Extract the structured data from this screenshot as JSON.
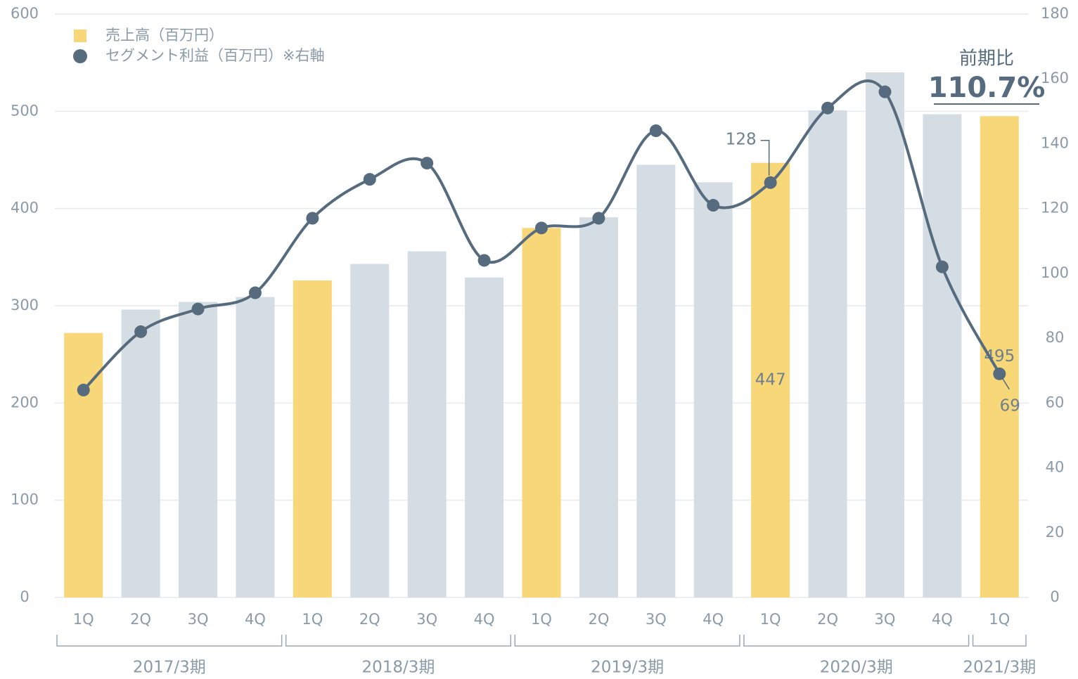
{
  "chart_data": {
    "type": "bar-line",
    "categories": [
      "1Q",
      "2Q",
      "3Q",
      "4Q",
      "1Q",
      "2Q",
      "3Q",
      "4Q",
      "1Q",
      "2Q",
      "3Q",
      "4Q",
      "1Q",
      "2Q",
      "3Q",
      "4Q",
      "1Q"
    ],
    "periods": [
      "2017/3期",
      "2017/3期",
      "2017/3期",
      "2017/3期",
      "2018/3期",
      "2018/3期",
      "2018/3期",
      "2018/3期",
      "2019/3期",
      "2019/3期",
      "2019/3期",
      "2019/3期",
      "2020/3期",
      "2020/3期",
      "2020/3期",
      "2020/3期",
      "2021/3期"
    ],
    "series": [
      {
        "name": "売上高（百万円）",
        "type": "bar",
        "color": "#f7d778",
        "colors": [
          "#f7d778",
          "#d5dde4",
          "#d5dde4",
          "#d5dde4",
          "#f7d778",
          "#d5dde4",
          "#d5dde4",
          "#d5dde4",
          "#f7d778",
          "#d5dde4",
          "#d5dde4",
          "#d5dde4",
          "#f7d778",
          "#d5dde4",
          "#d5dde4",
          "#d5dde4",
          "#f7d778"
        ],
        "values": [
          272,
          296,
          304,
          309,
          326,
          343,
          356,
          329,
          380,
          391,
          445,
          427,
          447,
          501,
          540,
          497,
          495
        ],
        "value_labels": [
          null,
          null,
          null,
          null,
          null,
          null,
          null,
          null,
          null,
          null,
          null,
          null,
          "447",
          null,
          null,
          null,
          "495"
        ]
      },
      {
        "name": "セグメント利益（百万円）※右軸",
        "type": "line",
        "axis": "y2",
        "color": "#566b7e",
        "values": [
          64,
          82,
          89,
          94,
          117,
          129,
          134,
          104,
          114,
          117,
          144,
          121,
          128,
          151,
          156,
          102,
          69
        ],
        "value_labels": [
          null,
          null,
          null,
          null,
          null,
          null,
          null,
          null,
          null,
          null,
          null,
          null,
          "128",
          null,
          null,
          null,
          "69"
        ]
      }
    ],
    "ylim": [
      0,
      600
    ],
    "yticks": [
      0,
      100,
      200,
      300,
      400,
      500,
      600
    ],
    "y2lim": [
      0,
      180
    ],
    "y2ticks": [
      0,
      20,
      40,
      60,
      80,
      100,
      120,
      140,
      160,
      180
    ],
    "grid": true,
    "legend": "top-left",
    "annotation": {
      "caption": "前期比",
      "value": "110.7%"
    }
  }
}
